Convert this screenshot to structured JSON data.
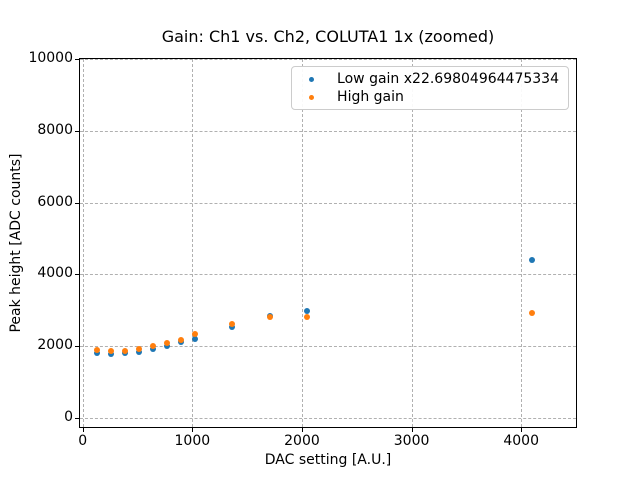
{
  "chart_data": {
    "type": "scatter",
    "title": "Gain: Ch1 vs. Ch2, COLUTA1 1x (zoomed)",
    "xlabel": "DAC setting [A.U.]",
    "ylabel": "Peak height [ADC counts]",
    "xlim": [
      -25,
      4500
    ],
    "ylim": [
      -250,
      10000
    ],
    "xticks": [
      0,
      1000,
      2000,
      3000,
      4000
    ],
    "yticks": [
      0,
      2000,
      4000,
      6000,
      8000,
      10000
    ],
    "grid": true,
    "grid_style": "dashed",
    "grid_color": "#b0b0b0",
    "legend_position": "upper right",
    "marker": "dot",
    "x": [
      128,
      256,
      384,
      512,
      640,
      768,
      896,
      1024,
      1365,
      1707,
      2048,
      4096
    ],
    "series": [
      {
        "name": "Low gain x22.69804964475334",
        "color": "#1f77b4",
        "values": [
          1810,
          1775,
          1800,
          1845,
          1930,
          2000,
          2105,
          2210,
          2535,
          2850,
          2980,
          4410
        ]
      },
      {
        "name": "High gain",
        "color": "#ff7f0e",
        "values": [
          1885,
          1855,
          1875,
          1920,
          2005,
          2085,
          2175,
          2330,
          2610,
          2805,
          2825,
          2915
        ]
      }
    ]
  }
}
